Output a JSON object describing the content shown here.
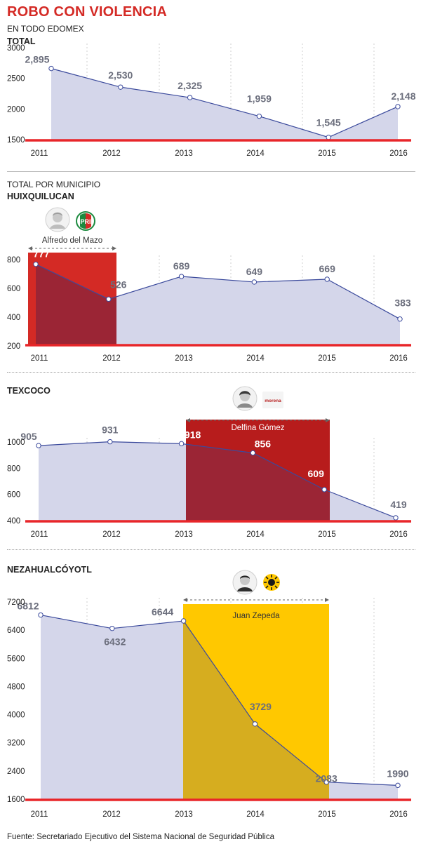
{
  "header": {
    "title": "ROBO CON VIOLENCIA",
    "subtitle": "EN TODO EDOMEX"
  },
  "municipios_label": "TOTAL POR MUNICIPIO",
  "source": "Fuente: Secretariado Ejecutivo del Sistema Nacional de Seguridad Pública",
  "colors": {
    "area": "#d4d6ea",
    "line": "#3b4a9c",
    "baseline": "#e8262a",
    "pri_red": "#d42a25",
    "morena_red": "#b71c1c",
    "prd_yellow": "#ffc800"
  },
  "chart_data": [
    {
      "type": "area",
      "title": "TOTAL",
      "x": [
        "2011",
        "2012",
        "2013",
        "2014",
        "2015",
        "2016"
      ],
      "values": [
        2895,
        2530,
        2325,
        1959,
        1545,
        2148
      ],
      "value_labels": [
        "2,895",
        "2,530",
        "2,325",
        "1,959",
        "1,545",
        "2,148"
      ],
      "yticks": [
        "3000",
        "2500",
        "2000",
        "1500"
      ],
      "ylim": [
        1500,
        3000
      ],
      "grid": "dotted vertical"
    },
    {
      "type": "area",
      "title": "HUIXQUILUCAN",
      "x": [
        "2011",
        "2012",
        "2013",
        "2014",
        "2015",
        "2016"
      ],
      "values": [
        777,
        526,
        689,
        649,
        669,
        383
      ],
      "value_labels": [
        "777",
        "526",
        "689",
        "649",
        "669",
        "383"
      ],
      "yticks": [
        "800",
        "600",
        "400",
        "200"
      ],
      "ylim": [
        200,
        800
      ],
      "highlight": {
        "from": "2011",
        "to": "2012",
        "name": "Alfredo del Mazo",
        "party": "PRI",
        "color": "#d42a25"
      },
      "grid": "dotted vertical"
    },
    {
      "type": "area",
      "title": "TEXCOCO",
      "x": [
        "2011",
        "2012",
        "2013",
        "2014",
        "2015",
        "2016"
      ],
      "values": [
        905,
        931,
        918,
        856,
        609,
        419
      ],
      "value_labels": [
        "905",
        "931",
        "918",
        "856",
        "609",
        "419"
      ],
      "yticks": [
        "1000",
        "800",
        "600",
        "400"
      ],
      "ylim": [
        400,
        1000
      ],
      "highlight": {
        "from": "2013",
        "to": "2015",
        "name": "Delfina Gómez",
        "party": "morena",
        "color": "#b71c1c"
      },
      "grid": "dotted vertical"
    },
    {
      "type": "area",
      "title": "NEZAHUALCÓYOTL",
      "x": [
        "2011",
        "2012",
        "2013",
        "2014",
        "2015",
        "2016"
      ],
      "values": [
        6812,
        6432,
        6644,
        3729,
        2083,
        1990
      ],
      "value_labels": [
        "6812",
        "6432",
        "6644",
        "3729",
        "2083",
        "1990"
      ],
      "yticks": [
        "7200",
        "6400",
        "5600",
        "4800",
        "4000",
        "3200",
        "2400",
        "1600"
      ],
      "ylim": [
        1600,
        7200
      ],
      "highlight": {
        "from": "2013",
        "to": "2015",
        "name": "Juan Zepeda",
        "party": "PRD",
        "color": "#ffc800"
      },
      "grid": "dotted vertical"
    }
  ]
}
